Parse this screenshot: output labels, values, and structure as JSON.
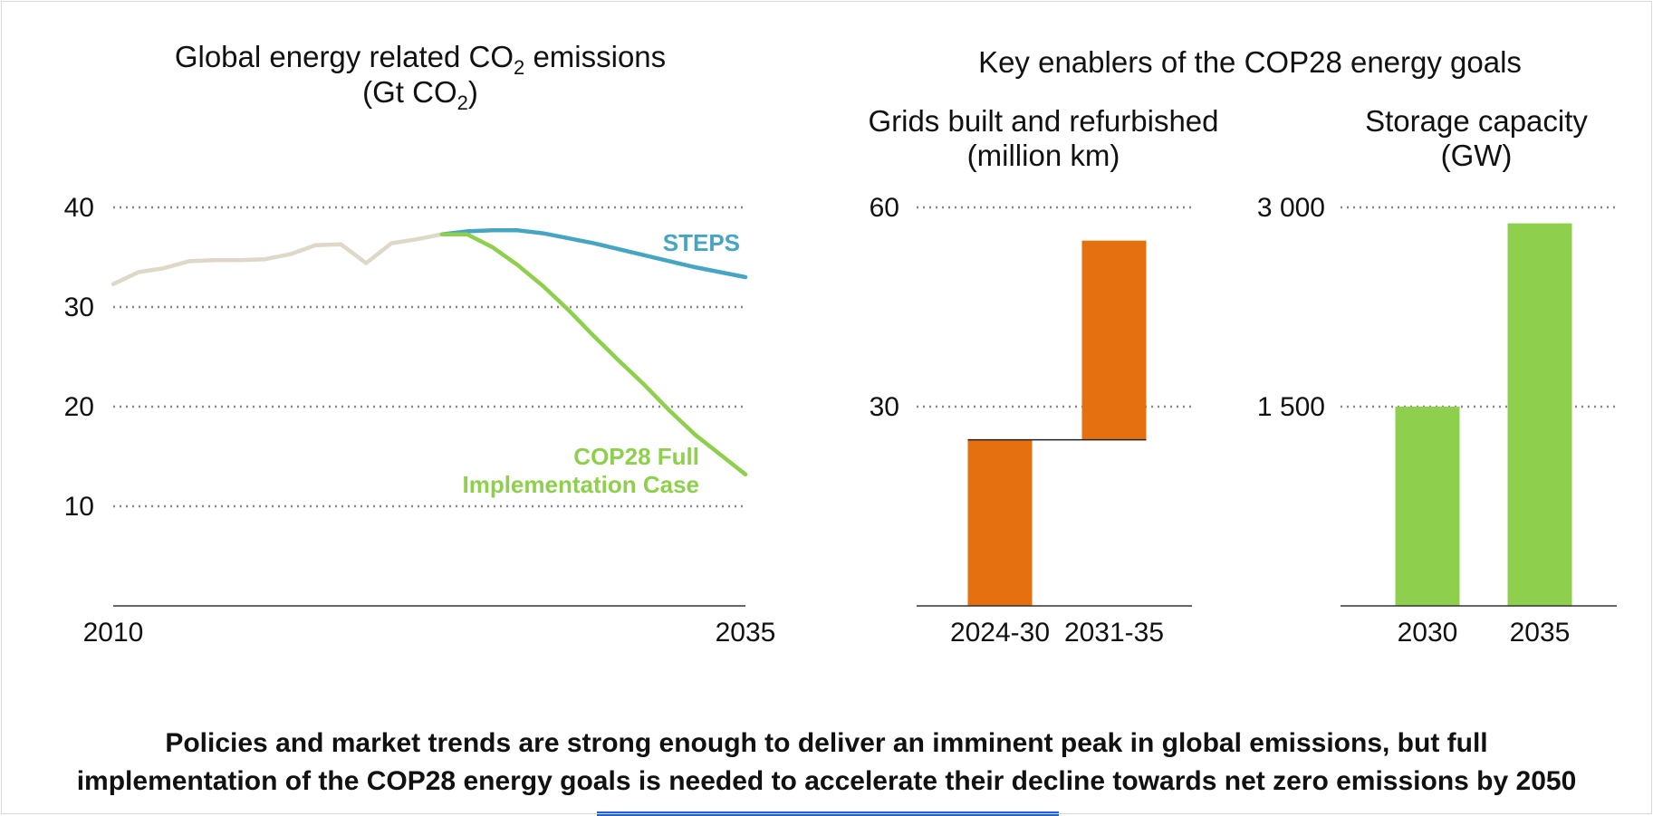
{
  "caption": {
    "line1": "Policies and market trends are strong enough to deliver an imminent peak in global emissions, but full",
    "line2": "implementation of the COP28 energy goals is needed to accelerate their decline towards net zero emissions by 2050"
  },
  "colors": {
    "historical": "#ddd8c7",
    "steps": "#45a5c2",
    "cop28": "#8ecf4d",
    "grids": "#e5700f",
    "storage": "#8ecf4d",
    "gridline": "#888888",
    "axis": "#333333",
    "bottom_bar": "#1f5fe0"
  },
  "chart_data": [
    {
      "type": "line",
      "title": "Global energy related CO",
      "title_sub": "2",
      "title_suffix": " emissions",
      "unit_line": "(Gt CO",
      "unit_sub": "2",
      "unit_suffix": ")",
      "xlim": [
        2010,
        2035
      ],
      "ylim": [
        0,
        40
      ],
      "yticks": [
        10,
        20,
        30,
        40
      ],
      "xtick_labels": [
        "2010",
        "2035"
      ],
      "grid": true,
      "series": [
        {
          "key": "historical",
          "x": [
            2010,
            2011,
            2012,
            2013,
            2014,
            2015,
            2016,
            2017,
            2018,
            2019,
            2020,
            2021,
            2022,
            2023
          ],
          "y": [
            32.3,
            33.5,
            33.9,
            34.6,
            34.7,
            34.7,
            34.8,
            35.3,
            36.2,
            36.3,
            34.4,
            36.4,
            36.8,
            37.3
          ]
        },
        {
          "key": "steps",
          "name": "STEPS",
          "x": [
            2023,
            2024,
            2025,
            2026,
            2027,
            2028,
            2029,
            2030,
            2031,
            2032,
            2033,
            2034,
            2035
          ],
          "y": [
            37.3,
            37.6,
            37.7,
            37.7,
            37.4,
            36.9,
            36.4,
            35.8,
            35.2,
            34.6,
            34.0,
            33.5,
            33.0
          ]
        },
        {
          "key": "cop28",
          "name_line1": "COP28 Full",
          "name_line2": "Implementation Case",
          "x": [
            2023,
            2024,
            2025,
            2026,
            2027,
            2028,
            2029,
            2030,
            2031,
            2032,
            2033,
            2034,
            2035
          ],
          "y": [
            37.3,
            37.3,
            36.0,
            34.2,
            32.1,
            29.7,
            27.1,
            24.6,
            22.2,
            19.6,
            17.2,
            15.2,
            13.2
          ]
        }
      ]
    },
    {
      "type": "bar",
      "group_title": "Key enablers of the COP28 energy goals",
      "title": "Grids built and refurbished",
      "unit_line": "(million km)",
      "ylim": [
        0,
        60
      ],
      "yticks": [
        30,
        60
      ],
      "ytick_labels": [
        "30",
        "60"
      ],
      "categories": [
        "2024-30",
        "2031-35"
      ],
      "bars": [
        {
          "base": 0,
          "value": 25
        },
        {
          "base": 25,
          "value": 30
        }
      ]
    },
    {
      "type": "bar",
      "title": "Storage capacity",
      "unit_line": "(GW)",
      "ylim": [
        0,
        3000
      ],
      "yticks": [
        1500,
        3000
      ],
      "ytick_labels": [
        "1 500",
        "3 000"
      ],
      "categories": [
        "2030",
        "2035"
      ],
      "values": [
        1500,
        2880
      ]
    }
  ]
}
